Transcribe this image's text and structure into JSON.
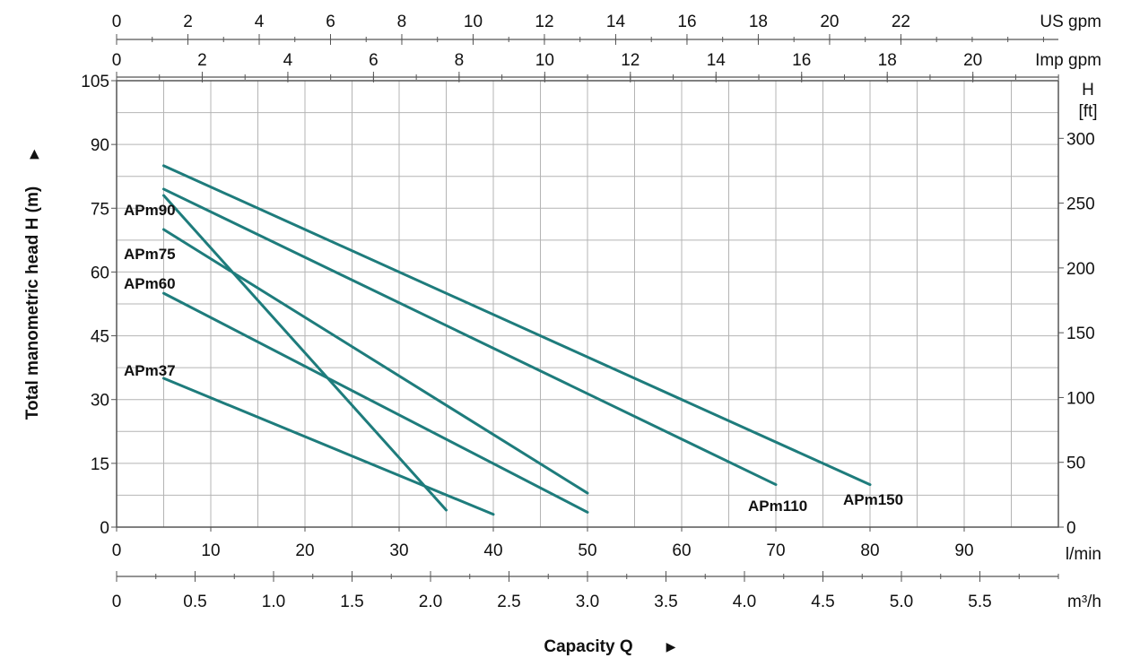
{
  "chart_data": {
    "type": "line",
    "xlabel": "Capacity Q",
    "ylabel": "Total manometric head H (m)",
    "xlim": [
      0,
      100
    ],
    "ylim": [
      0,
      105
    ],
    "x_unit": "l/min",
    "y_unit": "m",
    "grid": true,
    "x_ticks": [
      0,
      10,
      20,
      30,
      40,
      50,
      60,
      70,
      80,
      90
    ],
    "y_ticks": [
      0,
      15,
      30,
      45,
      60,
      75,
      90,
      105
    ],
    "secondary_axes": {
      "us_gpm": {
        "label": "US gpm",
        "ticks": [
          0,
          2,
          4,
          6,
          8,
          10,
          12,
          14,
          16,
          18,
          20,
          22
        ]
      },
      "imp_gpm": {
        "label": "Imp gpm",
        "ticks": [
          0,
          2,
          4,
          6,
          8,
          10,
          12,
          14,
          16,
          18,
          20
        ]
      },
      "m3h": {
        "label": "m³/h",
        "ticks": [
          "0",
          "0.5",
          "1.0",
          "1.5",
          "2.0",
          "2.5",
          "3.0",
          "3.5",
          "4.0",
          "4.5",
          "5.0",
          "5.5"
        ]
      },
      "feet": {
        "label_line1": "H",
        "label_line2": "[ft]",
        "ticks": [
          0,
          50,
          100,
          150,
          200,
          250,
          300
        ]
      }
    },
    "series": [
      {
        "name": "APm37",
        "x": [
          5,
          40
        ],
        "y": [
          35,
          3
        ]
      },
      {
        "name": "APm60",
        "x": [
          5,
          50
        ],
        "y": [
          55,
          3.5
        ]
      },
      {
        "name": "APm75",
        "x": [
          5,
          50
        ],
        "y": [
          70,
          8
        ]
      },
      {
        "name": "APm90",
        "x": [
          5,
          35
        ],
        "y": [
          78,
          4
        ]
      },
      {
        "name": "APm110",
        "x": [
          5,
          70
        ],
        "y": [
          79.5,
          10
        ]
      },
      {
        "name": "APm150",
        "x": [
          5,
          80
        ],
        "y": [
          85,
          10
        ]
      }
    ]
  },
  "colors": {
    "curve": "#1e7c7c",
    "grid": "#b4b4b4",
    "axis": "#555555"
  }
}
